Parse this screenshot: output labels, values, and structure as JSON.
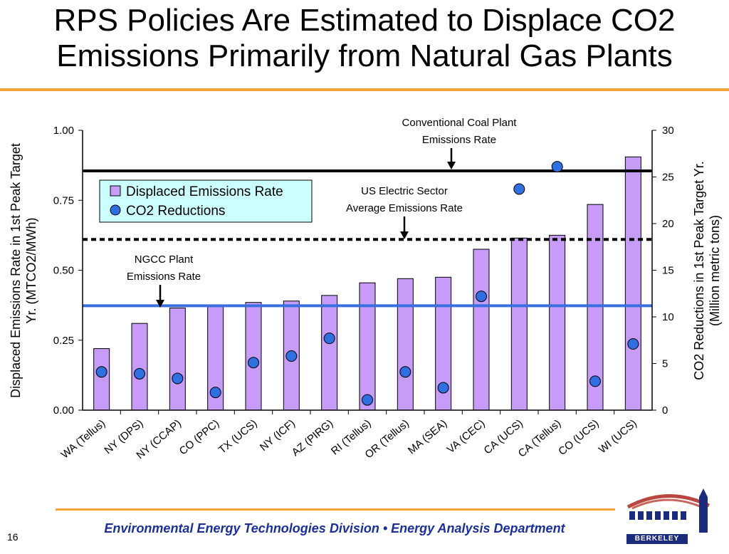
{
  "slide": {
    "title_line1": "RPS Policies Are Estimated to Displace CO2",
    "title_line2": "Emissions Primarily from Natural Gas Plants",
    "footer": "Environmental Energy Technologies Division  •  Energy Analysis Department",
    "page_number": "16",
    "logo_text": "BERKELEY LAB"
  },
  "colors": {
    "accent_orange": "#f4a23a",
    "footer_blue": "#1b2f9a",
    "bar_fill": "#c79cf7",
    "dot_fill": "#2f6fe0",
    "ngcc_line": "#3a6fe0",
    "legend_bg": "#ccffff"
  },
  "chart_data": {
    "type": "bar",
    "categories": [
      "WA (Tellus)",
      "NY (DPS)",
      "NY (CCAP)",
      "CO (PPC)",
      "TX (UCS)",
      "NY (ICF)",
      "AZ (PIRG)",
      "RI (Tellus)",
      "OR (Tellus)",
      "MA (SEA)",
      "VA (CEC)",
      "CA (UCS)",
      "CA (Tellus)",
      "CO (UCS)",
      "WI (UCS)"
    ],
    "series": [
      {
        "name": "Displaced Emissions Rate",
        "axis": "left",
        "type": "bar",
        "values": [
          0.22,
          0.31,
          0.365,
          0.37,
          0.385,
          0.39,
          0.41,
          0.455,
          0.47,
          0.475,
          0.575,
          0.615,
          0.625,
          0.735,
          0.905
        ]
      },
      {
        "name": "CO2 Reductions",
        "axis": "right",
        "type": "scatter",
        "values": [
          4.1,
          3.9,
          3.4,
          1.9,
          5.1,
          5.8,
          7.7,
          1.1,
          4.1,
          2.4,
          12.2,
          23.7,
          26.1,
          3.1,
          7.1
        ]
      }
    ],
    "reference_lines": [
      {
        "label": "Conventional Coal Plant Emissions Rate",
        "label_line1": "Conventional Coal Plant",
        "label_line2": "Emissions Rate",
        "value": 0.855,
        "style": "solid",
        "color": "#000000"
      },
      {
        "label": "US Electric Sector Average Emissions Rate",
        "label_line1": "US Electric Sector",
        "label_line2": "Average Emissions Rate",
        "value": 0.61,
        "style": "dashed",
        "color": "#000000"
      },
      {
        "label": "NGCC Plant Emissions Rate",
        "label_line1": "NGCC Plant",
        "label_line2": "Emissions Rate",
        "value": 0.373,
        "style": "solid",
        "color": "#3a6fe0"
      }
    ],
    "ylabel_left_line1": "Displaced Emissions Rate in 1st Peak Target",
    "ylabel_left_line2": "Yr. (MTCO2/MWh)",
    "ylabel_right_line1": "CO2 Reductions in 1st Peak Target Yr.",
    "ylabel_right_line2": "(Million metric tons)",
    "ylim_left": [
      0,
      1.0
    ],
    "ylim_right": [
      0,
      30
    ],
    "yticks_left": [
      "0.00",
      "0.25",
      "0.50",
      "0.75",
      "1.00"
    ],
    "yticks_right": [
      "0",
      "5",
      "10",
      "15",
      "20",
      "25",
      "30"
    ],
    "legend_position": "upper-left",
    "grid": false
  }
}
